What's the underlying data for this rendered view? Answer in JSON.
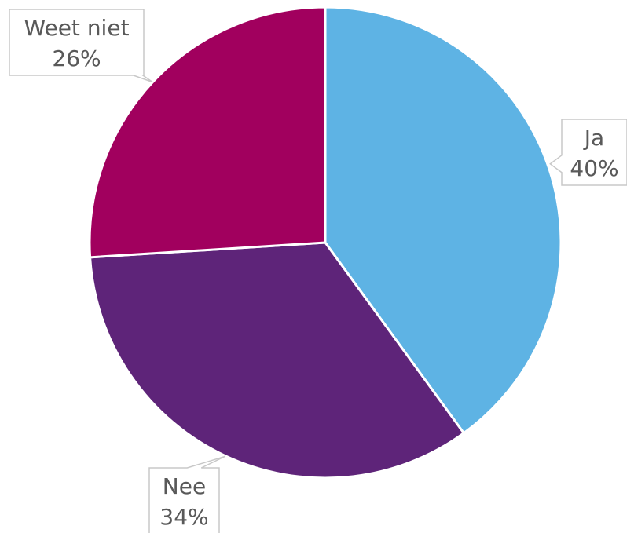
{
  "chart_data": {
    "type": "pie",
    "title": "",
    "slices": [
      {
        "label": "Ja",
        "value": 40,
        "display": "40%",
        "color": "#5EB3E4"
      },
      {
        "label": "Nee",
        "value": 34,
        "display": "34%",
        "color": "#5E2479"
      },
      {
        "label": "Weet niet",
        "value": 26,
        "display": "26%",
        "color": "#A1005E"
      }
    ],
    "start_angle_deg": 0,
    "direction": "clockwise",
    "legend": "none",
    "data_labels": "callouts"
  }
}
